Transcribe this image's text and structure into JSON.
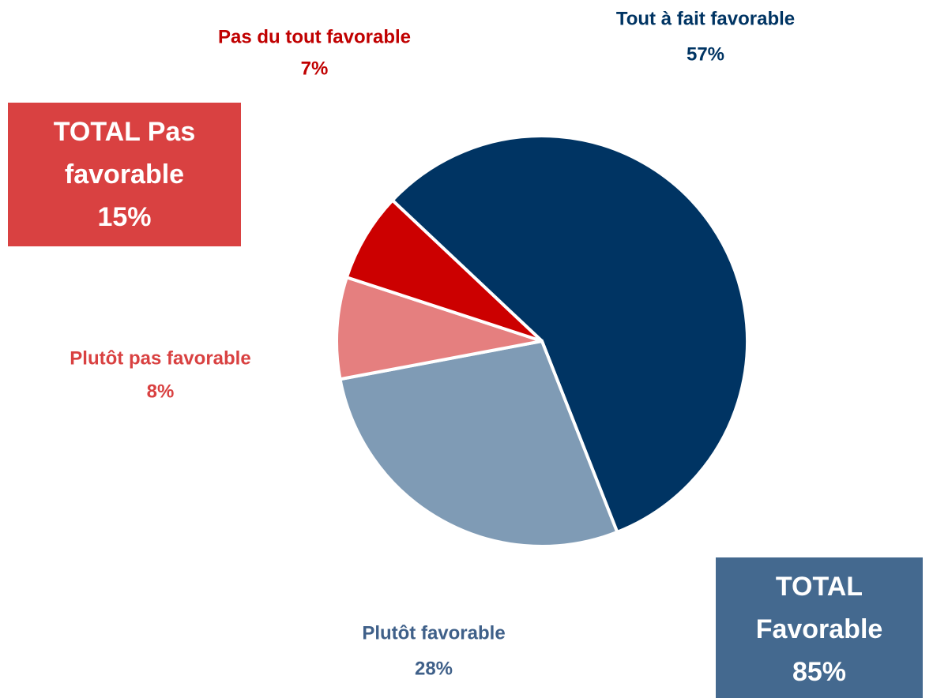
{
  "chart_data": {
    "type": "pie",
    "categories": [
      "Tout à fait favorable",
      "Plutôt favorable",
      "Plutôt pas favorable",
      "Pas du tout favorable"
    ],
    "values": [
      57,
      28,
      8,
      7
    ],
    "value_labels": [
      "57%",
      "28%",
      "8%",
      "7%"
    ],
    "colors": [
      "#003463",
      "#7f9bb5",
      "#e57f7f",
      "#cc0000"
    ],
    "label_colors": [
      "#003463",
      "#3f6089",
      "#d94141",
      "#c00000"
    ],
    "totals": [
      {
        "label": "TOTAL Pas favorable",
        "value": 15,
        "value_label": "15%",
        "color": "#d94141"
      },
      {
        "label": "TOTAL Favorable",
        "value": 85,
        "value_label": "85%",
        "color": "#44698f"
      }
    ]
  }
}
